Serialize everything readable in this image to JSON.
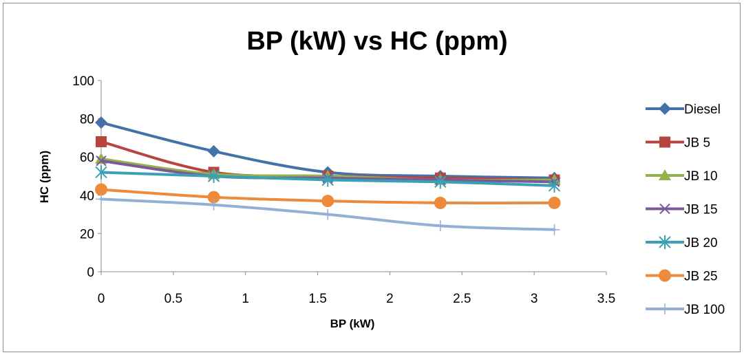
{
  "chart_data": {
    "type": "line",
    "title": "BP (kW) vs HC (ppm)",
    "xlabel": "BP (kW)",
    "ylabel": "HC (ppm)",
    "xlim": [
      0,
      3.5
    ],
    "ylim": [
      0,
      100
    ],
    "x_ticks": [
      "0",
      "0.5",
      "1",
      "1.5",
      "2",
      "2.5",
      "3",
      "3.5"
    ],
    "y_ticks": [
      "0",
      "20",
      "40",
      "60",
      "80",
      "100"
    ],
    "grid": false,
    "legend_position": "right",
    "x": [
      0,
      0.78,
      1.57,
      2.35,
      3.14
    ],
    "series": [
      {
        "name": "Diesel",
        "color": "#4472a8",
        "marker": "diamond",
        "values": [
          78,
          63,
          52,
          50,
          49
        ]
      },
      {
        "name": "JB 5",
        "color": "#b8433f",
        "marker": "square",
        "values": [
          68,
          52,
          50,
          49,
          48
        ]
      },
      {
        "name": "JB 10",
        "color": "#93b34a",
        "marker": "triangle",
        "values": [
          59,
          51,
          50,
          48,
          48
        ]
      },
      {
        "name": "JB 15",
        "color": "#7a5a98",
        "marker": "x",
        "values": [
          58,
          50,
          49,
          48,
          47
        ]
      },
      {
        "name": "JB 20",
        "color": "#3aa0b4",
        "marker": "asterisk",
        "values": [
          52,
          50,
          48,
          47,
          45
        ]
      },
      {
        "name": "JB 25",
        "color": "#ef8a3a",
        "marker": "circle",
        "values": [
          43,
          39,
          37,
          36,
          36
        ]
      },
      {
        "name": "JB 100",
        "color": "#94aed6",
        "marker": "plus",
        "values": [
          38,
          35,
          30,
          24,
          22
        ]
      }
    ]
  }
}
